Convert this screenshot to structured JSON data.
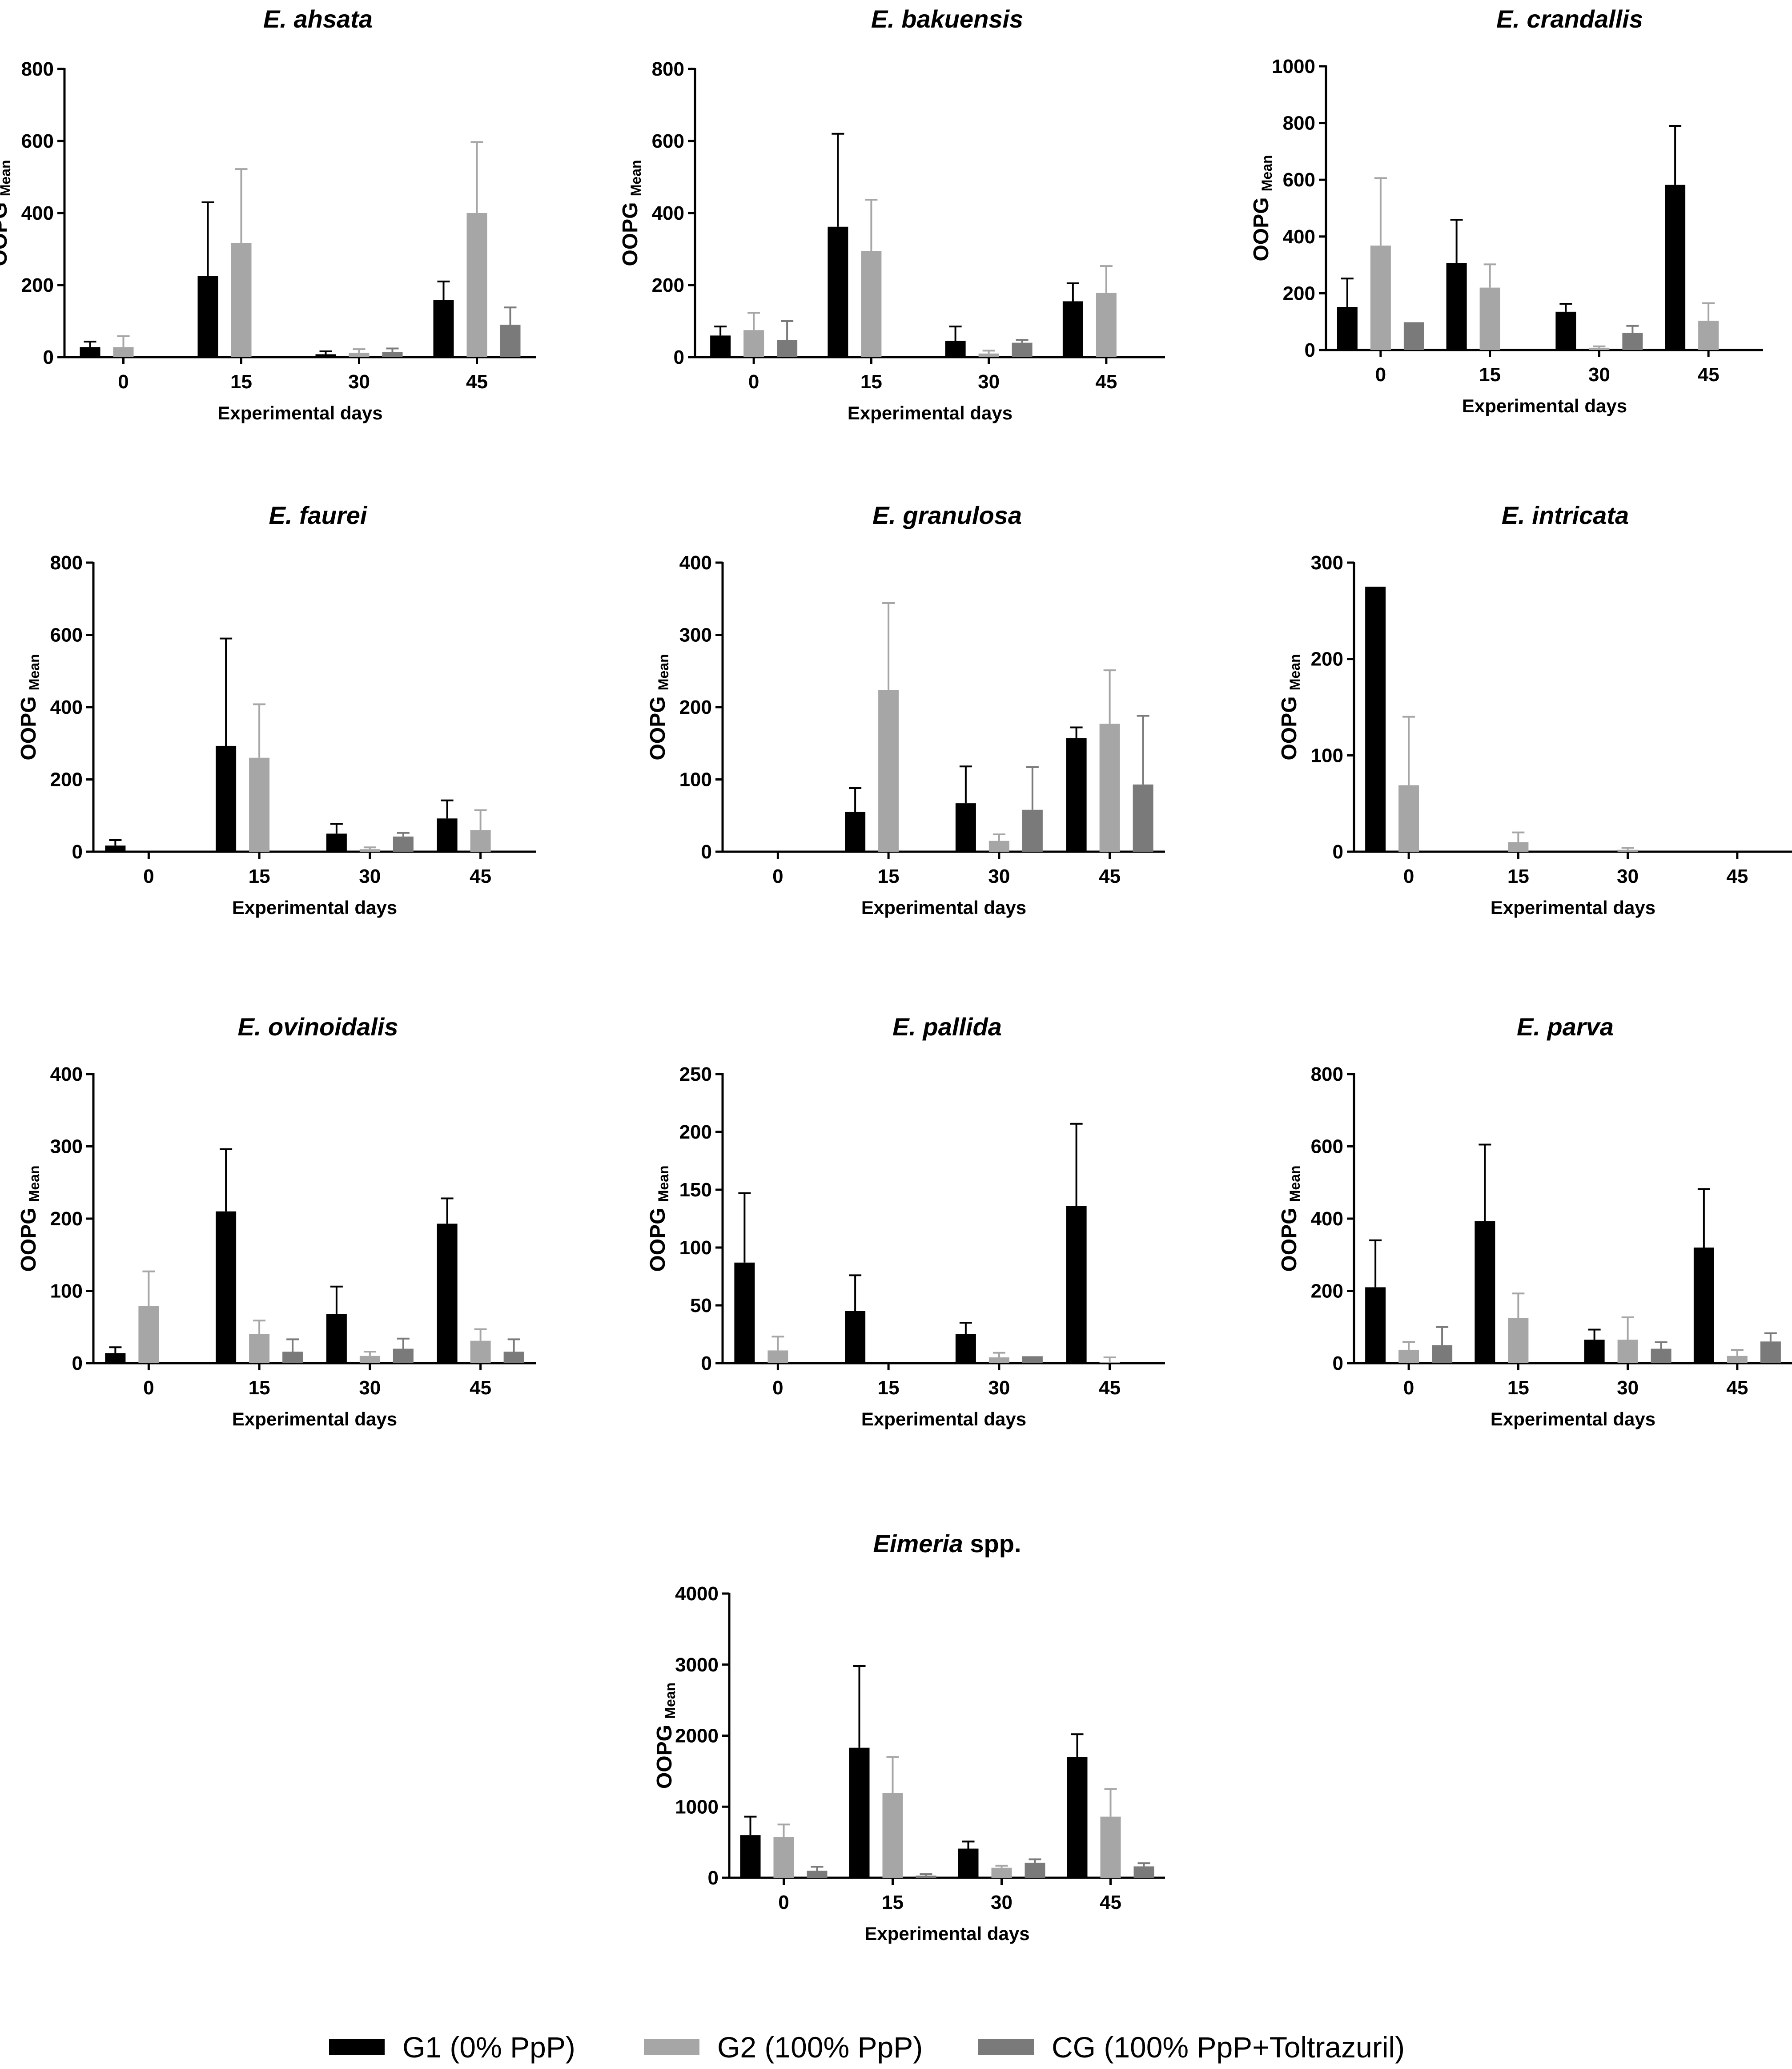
{
  "colors": {
    "g1": "#000000",
    "g2": "#a6a6a6",
    "cg": "#7a7a7a",
    "axis": "#000000"
  },
  "legend": [
    {
      "key": "g1",
      "label": "G1 (0% PpP)"
    },
    {
      "key": "g2",
      "label": "G2 (100% PpP)"
    },
    {
      "key": "cg",
      "label": "CG (100% PpP+Toltrazuril)"
    }
  ],
  "chart_data": [
    {
      "type": "bar",
      "title": "E. ahsata",
      "xlabel": "Experimental days",
      "ylabel": "OOPG",
      "ylabel_sub": "Mean",
      "categories": [
        "0",
        "15",
        "30",
        "45"
      ],
      "ylim": [
        0,
        800
      ],
      "yticks": [
        0,
        200,
        400,
        600,
        800
      ],
      "series": [
        {
          "name": "G1 (0% PpP)",
          "values": [
            28,
            225,
            8,
            158
          ],
          "errors": [
            15,
            205,
            8,
            52
          ]
        },
        {
          "name": "G2 (100% PpP)",
          "values": [
            28,
            317,
            12,
            400
          ],
          "errors": [
            30,
            205,
            10,
            197
          ]
        },
        {
          "name": "CG (100% PpP+Toltrazuril)",
          "values": [
            0,
            0,
            14,
            90
          ],
          "errors": [
            0,
            0,
            10,
            48
          ]
        }
      ]
    },
    {
      "type": "bar",
      "title": "E. bakuensis",
      "xlabel": "Experimental days",
      "ylabel": "OOPG",
      "ylabel_sub": "Mean",
      "categories": [
        "0",
        "15",
        "30",
        "45"
      ],
      "ylim": [
        0,
        800
      ],
      "yticks": [
        0,
        200,
        400,
        600,
        800
      ],
      "series": [
        {
          "name": "G1 (0% PpP)",
          "values": [
            60,
            362,
            45,
            155
          ],
          "errors": [
            25,
            258,
            40,
            50
          ]
        },
        {
          "name": "G2 (100% PpP)",
          "values": [
            75,
            295,
            10,
            178
          ],
          "errors": [
            48,
            142,
            8,
            75
          ]
        },
        {
          "name": "CG (100% PpP+Toltrazuril)",
          "values": [
            48,
            0,
            40,
            0
          ],
          "errors": [
            52,
            0,
            8,
            0
          ]
        }
      ]
    },
    {
      "type": "bar",
      "title": "E. crandallis",
      "xlabel": "Experimental days",
      "ylabel": "OOPG",
      "ylabel_sub": "Mean",
      "categories": [
        "0",
        "15",
        "30",
        "45"
      ],
      "ylim": [
        0,
        1000
      ],
      "yticks": [
        0,
        200,
        400,
        600,
        800,
        1000
      ],
      "series": [
        {
          "name": "G1 (0% PpP)",
          "values": [
            152,
            307,
            135,
            582
          ],
          "errors": [
            100,
            152,
            28,
            208
          ]
        },
        {
          "name": "G2 (100% PpP)",
          "values": [
            368,
            220,
            8,
            103
          ],
          "errors": [
            238,
            82,
            5,
            62
          ]
        },
        {
          "name": "CG (100% PpP+Toltrazuril)",
          "values": [
            98,
            0,
            60,
            0
          ],
          "errors": [
            0,
            0,
            25,
            0
          ]
        }
      ]
    },
    {
      "type": "bar",
      "title": "E. faurei",
      "xlabel": "Experimental days",
      "ylabel": "OOPG",
      "ylabel_sub": "Mean",
      "categories": [
        "0",
        "15",
        "30",
        "45"
      ],
      "ylim": [
        0,
        800
      ],
      "yticks": [
        0,
        200,
        400,
        600,
        800
      ],
      "series": [
        {
          "name": "G1 (0% PpP)",
          "values": [
            17,
            293,
            50,
            92
          ],
          "errors": [
            15,
            297,
            27,
            50
          ]
        },
        {
          "name": "G2 (100% PpP)",
          "values": [
            0,
            260,
            7,
            60
          ],
          "errors": [
            0,
            148,
            5,
            55
          ]
        },
        {
          "name": "CG (100% PpP+Toltrazuril)",
          "values": [
            0,
            0,
            42,
            0
          ],
          "errors": [
            0,
            0,
            10,
            0
          ]
        }
      ]
    },
    {
      "type": "bar",
      "title": "E. granulosa",
      "xlabel": "Experimental days",
      "ylabel": "OOPG",
      "ylabel_sub": "Mean",
      "categories": [
        "0",
        "15",
        "30",
        "45"
      ],
      "ylim": [
        0,
        400
      ],
      "yticks": [
        0,
        100,
        200,
        300,
        400
      ],
      "series": [
        {
          "name": "G1 (0% PpP)",
          "values": [
            0,
            55,
            67,
            157
          ],
          "errors": [
            0,
            33,
            51,
            15
          ]
        },
        {
          "name": "G2 (100% PpP)",
          "values": [
            0,
            224,
            15,
            177
          ],
          "errors": [
            0,
            120,
            9,
            74
          ]
        },
        {
          "name": "CG (100% PpP+Toltrazuril)",
          "values": [
            0,
            0,
            58,
            93
          ],
          "errors": [
            0,
            0,
            59,
            95
          ]
        }
      ]
    },
    {
      "type": "bar",
      "title": "E. intricata",
      "xlabel": "Experimental days",
      "ylabel": "OOPG",
      "ylabel_sub": "Mean",
      "categories": [
        "0",
        "15",
        "30",
        "45"
      ],
      "ylim": [
        0,
        300
      ],
      "yticks": [
        0,
        100,
        200,
        300
      ],
      "series": [
        {
          "name": "G1 (0% PpP)",
          "values": [
            275,
            0,
            0,
            0
          ],
          "errors": [
            0,
            0,
            0,
            0
          ]
        },
        {
          "name": "G2 (100% PpP)",
          "values": [
            69,
            10,
            2,
            0
          ],
          "errors": [
            71,
            10,
            2,
            0
          ]
        },
        {
          "name": "CG (100% PpP+Toltrazuril)",
          "values": [
            0,
            0,
            0,
            0
          ],
          "errors": [
            0,
            0,
            0,
            0
          ]
        }
      ]
    },
    {
      "type": "bar",
      "title": "E. ovinoidalis",
      "xlabel": "Experimental days",
      "ylabel": "OOPG",
      "ylabel_sub": "Mean",
      "categories": [
        "0",
        "15",
        "30",
        "45"
      ],
      "ylim": [
        0,
        400
      ],
      "yticks": [
        0,
        100,
        200,
        300,
        400
      ],
      "series": [
        {
          "name": "G1 (0% PpP)",
          "values": [
            14,
            210,
            68,
            193
          ],
          "errors": [
            8,
            86,
            38,
            35
          ]
        },
        {
          "name": "G2 (100% PpP)",
          "values": [
            79,
            40,
            10,
            31
          ],
          "errors": [
            48,
            19,
            6,
            16
          ]
        },
        {
          "name": "CG (100% PpP+Toltrazuril)",
          "values": [
            0,
            16,
            20,
            16
          ],
          "errors": [
            0,
            17,
            14,
            17
          ]
        }
      ]
    },
    {
      "type": "bar",
      "title": "E. pallida",
      "xlabel": "Experimental days",
      "ylabel": "OOPG",
      "ylabel_sub": "Mean",
      "categories": [
        "0",
        "15",
        "30",
        "45"
      ],
      "ylim": [
        0,
        250
      ],
      "yticks": [
        0,
        50,
        100,
        150,
        200,
        250
      ],
      "series": [
        {
          "name": "G1 (0% PpP)",
          "values": [
            87,
            45,
            25,
            136
          ],
          "errors": [
            60,
            31,
            10,
            71
          ]
        },
        {
          "name": "G2 (100% PpP)",
          "values": [
            11,
            0,
            5,
            1
          ],
          "errors": [
            12,
            0,
            4,
            4
          ]
        },
        {
          "name": "CG (100% PpP+Toltrazuril)",
          "values": [
            0,
            0,
            6,
            0
          ],
          "errors": [
            0,
            0,
            0,
            0
          ]
        }
      ]
    },
    {
      "type": "bar",
      "title": "E. parva",
      "xlabel": "Experimental days",
      "ylabel": "OOPG",
      "ylabel_sub": "Mean",
      "categories": [
        "0",
        "15",
        "30",
        "45"
      ],
      "ylim": [
        0,
        800
      ],
      "yticks": [
        0,
        200,
        400,
        600,
        800
      ],
      "series": [
        {
          "name": "G1 (0% PpP)",
          "values": [
            210,
            393,
            65,
            320
          ],
          "errors": [
            130,
            212,
            28,
            162
          ]
        },
        {
          "name": "G2 (100% PpP)",
          "values": [
            37,
            125,
            65,
            20
          ],
          "errors": [
            22,
            68,
            62,
            17
          ]
        },
        {
          "name": "CG (100% PpP+Toltrazuril)",
          "values": [
            50,
            0,
            40,
            60
          ],
          "errors": [
            50,
            0,
            18,
            23
          ]
        }
      ]
    },
    {
      "type": "bar",
      "title": "Eimeria",
      "title_suffix": " spp.",
      "xlabel": "Experimental days",
      "ylabel": "OOPG",
      "ylabel_sub": "Mean",
      "categories": [
        "0",
        "15",
        "30",
        "45"
      ],
      "ylim": [
        0,
        4000
      ],
      "yticks": [
        0,
        1000,
        2000,
        3000,
        4000
      ],
      "series": [
        {
          "name": "G1 (0% PpP)",
          "values": [
            600,
            1830,
            410,
            1700
          ],
          "errors": [
            260,
            1150,
            100,
            320
          ]
        },
        {
          "name": "G2 (100% PpP)",
          "values": [
            570,
            1190,
            140,
            860
          ],
          "errors": [
            180,
            510,
            30,
            390
          ]
        },
        {
          "name": "CG (100% PpP+Toltrazuril)",
          "values": [
            100,
            30,
            210,
            160
          ],
          "errors": [
            55,
            20,
            50,
            45
          ]
        }
      ]
    }
  ]
}
